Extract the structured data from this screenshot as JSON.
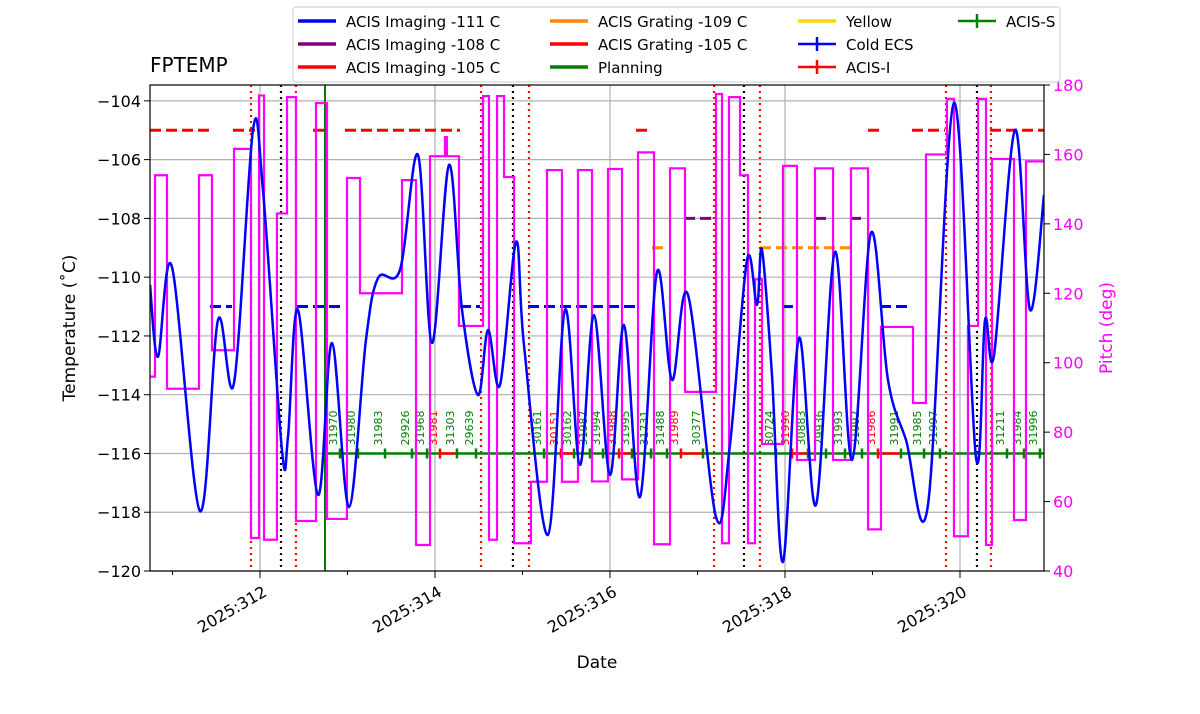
{
  "chart_data": {
    "type": "line",
    "title": "FPTEMP",
    "xlabel": "Date",
    "ylabel": "Temperature ($^\\circ$C)",
    "ylabel_display": "Temperature (˚C)",
    "y2label": "Pitch (deg)",
    "xlim": [
      310.743,
      320.96
    ],
    "ylim": [
      -120,
      -103.46
    ],
    "y2lim": [
      40,
      180
    ],
    "grid": true,
    "legend_placement": "top",
    "x_ticks": [
      {
        "v": 312,
        "label": "2025:312"
      },
      {
        "v": 314,
        "label": "2025:314"
      },
      {
        "v": 316,
        "label": "2025:316"
      },
      {
        "v": 318,
        "label": "2025:318"
      },
      {
        "v": 320,
        "label": "2025:320"
      }
    ],
    "y_ticks": [
      -120,
      -118,
      -116,
      -114,
      -112,
      -110,
      -108,
      -106,
      -104
    ],
    "y2_ticks": [
      40,
      60,
      80,
      100,
      120,
      140,
      160,
      180
    ],
    "colors": {
      "temp": "#0000ff",
      "pitch": "#ff00ff",
      "red": "#ff0000",
      "purple": "#800080",
      "orange": "#ff8c00",
      "yellow": "#ffd700",
      "green": "#008000",
      "black": "#000000"
    },
    "legend": [
      {
        "label": "ACIS Imaging -111 C",
        "color": "#0000ff",
        "style": "line"
      },
      {
        "label": "ACIS Imaging -108 C",
        "color": "#800080",
        "style": "line"
      },
      {
        "label": "ACIS Imaging -105 C",
        "color": "#ff0000",
        "style": "line"
      },
      {
        "label": "ACIS Grating -109 C",
        "color": "#ff8c00",
        "style": "line"
      },
      {
        "label": "ACIS Grating -105 C",
        "color": "#ff0000",
        "style": "line"
      },
      {
        "label": "Planning",
        "color": "#008000",
        "style": "line"
      },
      {
        "label": "Yellow",
        "color": "#ffd700",
        "style": "line"
      },
      {
        "label": "Cold ECS",
        "color": "#0000ff",
        "style": "errorbar"
      },
      {
        "label": "ACIS-I",
        "color": "#ff0000",
        "style": "errorbar"
      },
      {
        "label": "ACIS-S",
        "color": "#008000",
        "style": "errorbar"
      }
    ],
    "temperature": [
      [
        310.743,
        -110.26
      ],
      [
        310.834,
        -112.71
      ],
      [
        310.994,
        -109.65
      ],
      [
        311.314,
        -117.96
      ],
      [
        311.52,
        -111.46
      ],
      [
        311.703,
        -113.6
      ],
      [
        311.92,
        -104.99
      ],
      [
        312.034,
        -107.03
      ],
      [
        312.251,
        -115.88
      ],
      [
        312.32,
        -115.44
      ],
      [
        312.434,
        -111.11
      ],
      [
        312.663,
        -117.41
      ],
      [
        312.823,
        -112.24
      ],
      [
        313.017,
        -117.82
      ],
      [
        313.211,
        -112.14
      ],
      [
        313.349,
        -110.03
      ],
      [
        313.6,
        -109.75
      ],
      [
        313.806,
        -105.84
      ],
      [
        313.966,
        -112.24
      ],
      [
        314.16,
        -106.18
      ],
      [
        314.309,
        -111.11
      ],
      [
        314.491,
        -114.01
      ],
      [
        314.606,
        -111.8
      ],
      [
        314.743,
        -113.67
      ],
      [
        314.926,
        -108.8
      ],
      [
        315.017,
        -112.31
      ],
      [
        315.291,
        -118.77
      ],
      [
        315.486,
        -111.11
      ],
      [
        315.657,
        -116.39
      ],
      [
        315.817,
        -111.29
      ],
      [
        316.0,
        -116.73
      ],
      [
        316.16,
        -111.63
      ],
      [
        316.343,
        -117.48
      ],
      [
        316.537,
        -109.82
      ],
      [
        316.709,
        -113.5
      ],
      [
        316.891,
        -110.6
      ],
      [
        317.211,
        -118.16
      ],
      [
        317.371,
        -115.71
      ],
      [
        317.566,
        -109.41
      ],
      [
        317.68,
        -110.94
      ],
      [
        317.737,
        -109.07
      ],
      [
        317.851,
        -113.33
      ],
      [
        317.977,
        -119.69
      ],
      [
        318.16,
        -112.07
      ],
      [
        318.354,
        -117.75
      ],
      [
        318.571,
        -109.14
      ],
      [
        318.766,
        -116.22
      ],
      [
        318.983,
        -108.49
      ],
      [
        319.177,
        -113.5
      ],
      [
        319.383,
        -115.54
      ],
      [
        319.634,
        -117.75
      ],
      [
        319.931,
        -104.07
      ],
      [
        320.183,
        -116.15
      ],
      [
        320.286,
        -111.46
      ],
      [
        320.389,
        -112.65
      ],
      [
        320.629,
        -104.99
      ],
      [
        320.8,
        -111.11
      ],
      [
        320.96,
        -107.2
      ]
    ],
    "pitch_steps": [
      [
        310.743,
        96
      ],
      [
        310.8,
        154
      ],
      [
        310.937,
        92.5
      ],
      [
        311.303,
        154
      ],
      [
        311.451,
        103.6
      ],
      [
        311.703,
        161.6
      ],
      [
        311.897,
        49.5
      ],
      [
        311.989,
        177
      ],
      [
        312.046,
        49
      ],
      [
        312.194,
        143
      ],
      [
        312.309,
        176.5
      ],
      [
        312.411,
        54.4
      ],
      [
        312.64,
        174.8
      ],
      [
        312.766,
        55
      ],
      [
        312.994,
        153.2
      ],
      [
        313.143,
        120
      ],
      [
        313.623,
        152.6
      ],
      [
        313.783,
        47.5
      ],
      [
        313.943,
        159.5
      ],
      [
        314.114,
        165
      ],
      [
        314.137,
        159.5
      ],
      [
        314.274,
        110.6
      ],
      [
        314.549,
        176.8
      ],
      [
        314.617,
        49
      ],
      [
        314.709,
        176.8
      ],
      [
        314.789,
        153.5
      ],
      [
        314.903,
        48
      ],
      [
        315.097,
        65.7
      ],
      [
        315.28,
        155.5
      ],
      [
        315.451,
        65.7
      ],
      [
        315.634,
        155.5
      ],
      [
        315.794,
        65.8
      ],
      [
        315.977,
        155.8
      ],
      [
        316.137,
        66.4
      ],
      [
        316.32,
        160.6
      ],
      [
        316.503,
        47.7
      ],
      [
        316.686,
        156
      ],
      [
        316.857,
        91.6
      ],
      [
        317.211,
        177.4
      ],
      [
        317.28,
        48
      ],
      [
        317.36,
        176.5
      ],
      [
        317.486,
        154
      ],
      [
        317.577,
        48
      ],
      [
        317.657,
        124
      ],
      [
        317.737,
        76.6
      ],
      [
        317.977,
        156.7
      ],
      [
        318.137,
        72
      ],
      [
        318.343,
        156
      ],
      [
        318.549,
        72
      ],
      [
        318.754,
        156
      ],
      [
        318.949,
        52
      ],
      [
        319.097,
        110.3
      ],
      [
        319.463,
        88.4
      ],
      [
        319.611,
        160
      ],
      [
        319.851,
        176
      ],
      [
        319.931,
        50
      ],
      [
        320.091,
        110.6
      ],
      [
        320.206,
        176
      ],
      [
        320.297,
        47.5
      ],
      [
        320.366,
        158.7
      ],
      [
        320.617,
        54.7
      ],
      [
        320.754,
        158
      ],
      [
        320.96,
        158
      ]
    ],
    "limit_segments": [
      {
        "value": -105,
        "color": "#ff0000",
        "ranges": [
          [
            310.743,
            311.429
          ],
          [
            311.691,
            311.943
          ],
          [
            312.606,
            312.743
          ],
          [
            312.971,
            314.286
          ],
          [
            316.297,
            316.48
          ],
          [
            318.949,
            319.086
          ],
          [
            319.451,
            319.829
          ],
          [
            320.343,
            320.96
          ]
        ]
      },
      {
        "value": -111,
        "color": "#0000ff",
        "ranges": [
          [
            311.429,
            311.68
          ],
          [
            312.423,
            312.971
          ],
          [
            314.286,
            314.514
          ],
          [
            315.063,
            316.297
          ],
          [
            317.977,
            318.091
          ],
          [
            319.086,
            319.451
          ]
        ]
      },
      {
        "value": -108,
        "color": "#800080",
        "ranges": [
          [
            316.846,
            317.189
          ],
          [
            318.343,
            318.514
          ],
          [
            318.743,
            318.926
          ]
        ]
      },
      {
        "value": -109,
        "color": "#ff8c00",
        "ranges": [
          [
            316.48,
            316.663
          ],
          [
            317.714,
            318.743
          ]
        ]
      }
    ],
    "planning_line": {
      "value": -116,
      "start": 312.743,
      "end": 320.96
    },
    "vlines_red": [
      311.897,
      312.411,
      314.526,
      315.074,
      317.189,
      317.714,
      319.84,
      320.354
    ],
    "vlines_black": [
      312.24,
      314.891,
      317.531,
      320.194
    ],
    "vline_green": 312.743,
    "obsids": [
      {
        "id": "31970",
        "x": 312.914,
        "inst": "S"
      },
      {
        "id": "31980",
        "x": 313.12,
        "inst": "S"
      },
      {
        "id": "31983",
        "x": 313.429,
        "inst": "S"
      },
      {
        "id": "29926",
        "x": 313.737,
        "inst": "S"
      },
      {
        "id": "31968",
        "x": 313.909,
        "inst": "S"
      },
      {
        "id": "31981",
        "x": 314.057,
        "inst": "I"
      },
      {
        "id": "31303",
        "x": 314.251,
        "inst": "S"
      },
      {
        "id": "29639",
        "x": 314.469,
        "inst": "S"
      },
      {
        "id": "30161",
        "x": 315.246,
        "inst": "S"
      },
      {
        "id": "30151",
        "x": 315.44,
        "inst": "I"
      },
      {
        "id": "30162",
        "x": 315.589,
        "inst": "S"
      },
      {
        "id": "31987",
        "x": 315.771,
        "inst": "S"
      },
      {
        "id": "31994",
        "x": 315.92,
        "inst": "S"
      },
      {
        "id": "31988",
        "x": 316.103,
        "inst": "I"
      },
      {
        "id": "31995",
        "x": 316.251,
        "inst": "S"
      },
      {
        "id": "31731",
        "x": 316.469,
        "inst": "S"
      },
      {
        "id": "31488",
        "x": 316.651,
        "inst": "S"
      },
      {
        "id": "31989",
        "x": 316.811,
        "inst": "I"
      },
      {
        "id": "30377",
        "x": 317.063,
        "inst": "S"
      },
      {
        "id": "30724",
        "x": 317.897,
        "inst": "S"
      },
      {
        "id": "31990",
        "x": 318.08,
        "inst": "I"
      },
      {
        "id": "30883",
        "x": 318.263,
        "inst": "S"
      },
      {
        "id": "29936",
        "x": 318.469,
        "inst": "S"
      },
      {
        "id": "31993",
        "x": 318.686,
        "inst": "S"
      },
      {
        "id": "31992",
        "x": 318.88,
        "inst": "S"
      },
      {
        "id": "31986",
        "x": 319.063,
        "inst": "I"
      },
      {
        "id": "31991",
        "x": 319.326,
        "inst": "S"
      },
      {
        "id": "31985",
        "x": 319.589,
        "inst": "S"
      },
      {
        "id": "31997",
        "x": 319.771,
        "inst": "S"
      },
      {
        "id": "31211",
        "x": 320.537,
        "inst": "S"
      },
      {
        "id": "31984",
        "x": 320.731,
        "inst": "S"
      },
      {
        "id": "31996",
        "x": 320.914,
        "inst": "S"
      }
    ]
  }
}
